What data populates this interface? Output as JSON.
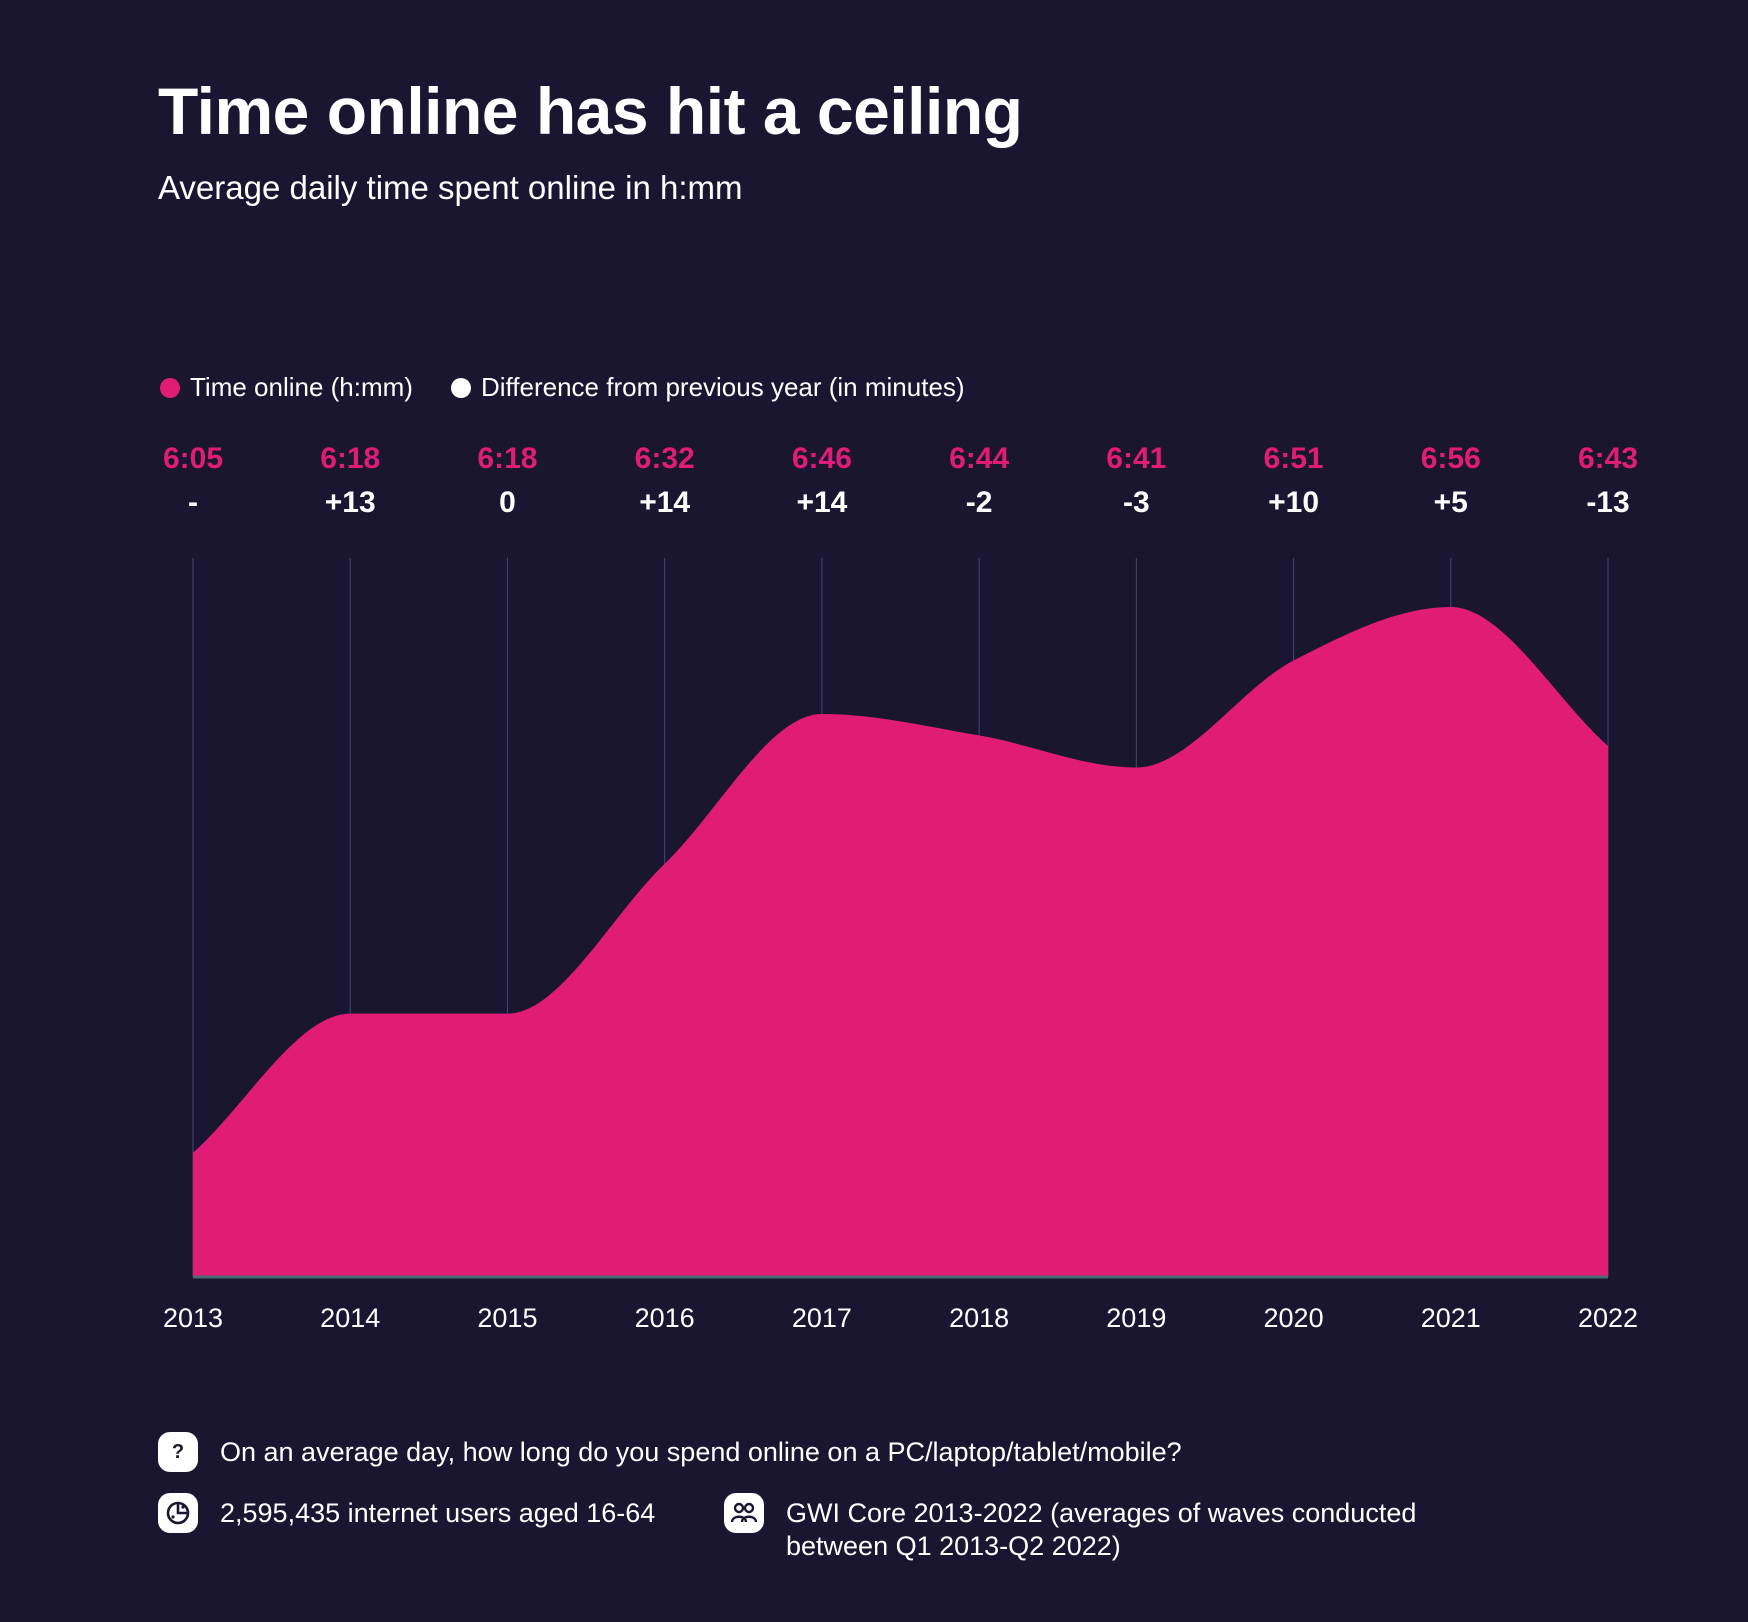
{
  "header": {
    "title": "Time online has hit a ceiling",
    "subtitle": "Average daily time spent online in h:mm"
  },
  "legend": {
    "items": [
      {
        "label": "Time online (h:mm)",
        "color": "#e01c78"
      },
      {
        "label": "Difference from previous year (in minutes)",
        "color": "#ffffff"
      }
    ]
  },
  "chart_data": {
    "type": "area",
    "categories": [
      "2013",
      "2014",
      "2015",
      "2016",
      "2017",
      "2018",
      "2019",
      "2020",
      "2021",
      "2022"
    ],
    "series": [
      {
        "name": "Time online (h:mm)",
        "labels": [
          "6:05",
          "6:18",
          "6:18",
          "6:32",
          "6:46",
          "6:44",
          "6:41",
          "6:51",
          "6:56",
          "6:43"
        ],
        "values_minutes": [
          365,
          378,
          378,
          392,
          406,
          404,
          401,
          411,
          416,
          403
        ],
        "color": "#e01c78"
      },
      {
        "name": "Difference from previous year (in minutes)",
        "labels": [
          "-",
          "+13",
          "0",
          "+14",
          "+14",
          "-2",
          "-3",
          "+10",
          "+5",
          "-13"
        ],
        "color": "#ffffff"
      }
    ],
    "grid": true,
    "gridlines": "vertical"
  },
  "colors": {
    "background": "#1a1632",
    "accent": "#e01c78",
    "gridline": "#4a4666",
    "baseline": "#4a6a78"
  },
  "footer": {
    "question": {
      "icon": "question-icon",
      "text": "On an average day, how long do you spend online on a PC/laptop/tablet/mobile?"
    },
    "sample": {
      "icon": "globe-icon",
      "text": "2,595,435 internet users aged 16-64"
    },
    "source": {
      "icon": "people-icon",
      "line1": "GWI Core 2013-2022 (averages of waves conducted",
      "line2": "between Q1 2013-Q2 2022)"
    }
  }
}
